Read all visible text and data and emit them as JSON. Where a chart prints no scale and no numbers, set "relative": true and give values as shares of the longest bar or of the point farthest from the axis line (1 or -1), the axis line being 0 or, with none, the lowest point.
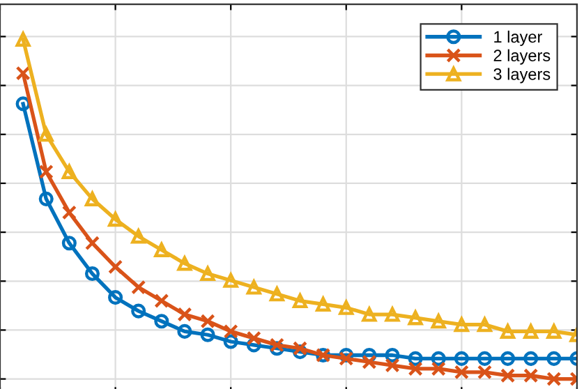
{
  "chart_data": {
    "type": "line",
    "relative": true,
    "categories": [
      null,
      null,
      null,
      null,
      null,
      null,
      null,
      null,
      null,
      null,
      null,
      null,
      null,
      null,
      null,
      null,
      null,
      null,
      null,
      null,
      null,
      null,
      null,
      null,
      null
    ],
    "grid": true,
    "legend": "top right",
    "line_style": "solid",
    "series": [
      {
        "name": "1 layer",
        "color": "#0072bd",
        "marker": "circle",
        "values": [
          0.81,
          0.53,
          0.4,
          0.31,
          0.24,
          0.2,
          0.17,
          0.14,
          0.13,
          0.11,
          0.1,
          0.09,
          0.08,
          0.07,
          0.07,
          0.07,
          0.07,
          0.06,
          0.06,
          0.06,
          0.06,
          0.06,
          0.06,
          0.06,
          0.06
        ]
      },
      {
        "name": "2 layers",
        "color": "#d95319",
        "marker": "cross",
        "values": [
          0.9,
          0.61,
          0.49,
          0.4,
          0.33,
          0.27,
          0.23,
          0.19,
          0.17,
          0.14,
          0.12,
          0.1,
          0.09,
          0.07,
          0.06,
          0.05,
          0.04,
          0.03,
          0.03,
          0.02,
          0.02,
          0.01,
          0.01,
          0.0,
          0.0
        ]
      },
      {
        "name": "3 layers",
        "color": "#edb120",
        "marker": "triangle",
        "values": [
          1.0,
          0.72,
          0.61,
          0.53,
          0.47,
          0.42,
          0.38,
          0.34,
          0.31,
          0.29,
          0.27,
          0.25,
          0.23,
          0.22,
          0.21,
          0.19,
          0.19,
          0.18,
          0.17,
          0.16,
          0.16,
          0.14,
          0.14,
          0.14,
          0.13
        ]
      }
    ]
  }
}
